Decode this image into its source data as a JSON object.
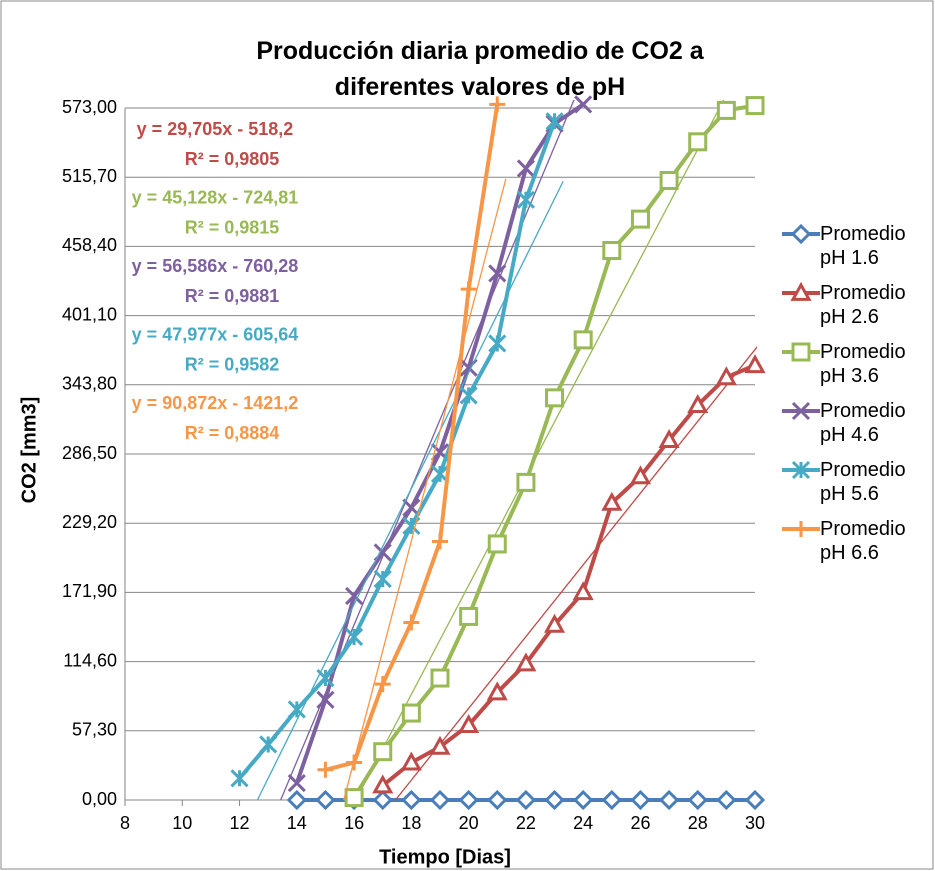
{
  "chart_data": {
    "type": "line",
    "title": "Producción diaria promedio de CO2 a diferentes valores de pH",
    "x_label": "Tiempo [Dias]",
    "y_label": "CO2 [mm3]",
    "xlim": [
      8,
      30
    ],
    "xticks": [
      8,
      10,
      12,
      14,
      16,
      18,
      20,
      22,
      24,
      26,
      28,
      30
    ],
    "ylim": [
      0,
      573
    ],
    "yticks": [
      {
        "value": 0,
        "label": "0,00"
      },
      {
        "value": 57.3,
        "label": "57,30"
      },
      {
        "value": 114.6,
        "label": "114,60"
      },
      {
        "value": 171.9,
        "label": "171,90"
      },
      {
        "value": 229.2,
        "label": "229,20"
      },
      {
        "value": 286.5,
        "label": "286,50"
      },
      {
        "value": 343.8,
        "label": "343,80"
      },
      {
        "value": 401.1,
        "label": "401,10"
      },
      {
        "value": 458.4,
        "label": "458,40"
      },
      {
        "value": 515.7,
        "label": "515,70"
      },
      {
        "value": 573,
        "label": "573,00"
      }
    ],
    "grid": true,
    "legend": "right",
    "series": [
      {
        "name": "Promedio pH 1.6",
        "color": "#4a7ebb",
        "marker": "diamond",
        "x": [
          14,
          15,
          16,
          17,
          18,
          19,
          20,
          21,
          22,
          23,
          24,
          25,
          26,
          27,
          28,
          29,
          30
        ],
        "values": [
          0,
          0,
          0,
          0,
          0,
          0,
          0,
          0,
          0,
          0,
          0,
          0,
          0,
          0,
          0,
          0,
          0
        ]
      },
      {
        "name": "Promedio pH 2.6",
        "color": "#be4b48",
        "marker": "triangle",
        "x": [
          17,
          18,
          19,
          20,
          21,
          22,
          23,
          24,
          25,
          26,
          27,
          28,
          29,
          30
        ],
        "values": [
          12,
          31,
          44,
          62,
          89,
          113,
          145,
          172,
          246,
          268,
          298,
          327,
          350,
          360
        ],
        "trendline": {
          "slope": 29.705,
          "intercept": -518.2,
          "equation": "y = 29,705x - 518,2",
          "r2": "R² = 0,9805"
        }
      },
      {
        "name": "Promedio pH 3.6",
        "color": "#98b954",
        "marker": "square",
        "x": [
          16,
          17,
          18,
          19,
          20,
          21,
          22,
          23,
          24,
          25,
          26,
          27,
          28,
          29,
          30
        ],
        "values": [
          2,
          40,
          72,
          101,
          152,
          212,
          263,
          333,
          381,
          455,
          481,
          513,
          545,
          571,
          575
        ],
        "trendline": {
          "slope": 45.128,
          "intercept": -724.81,
          "equation": "y = 45,128x - 724,81",
          "r2": "R² = 0,9815"
        }
      },
      {
        "name": "Promedio pH 4.6",
        "color": "#7d60a0",
        "marker": "x",
        "x": [
          14,
          15,
          16,
          17,
          18,
          19,
          20,
          21,
          22,
          23,
          24
        ],
        "values": [
          14,
          83,
          169,
          205,
          242,
          288,
          358,
          436,
          523,
          560,
          576
        ],
        "trendline": {
          "slope": 56.586,
          "intercept": -760.28,
          "equation": "y = 56,586x - 760,28",
          "r2": "R² = 0,9881"
        }
      },
      {
        "name": "Promedio pH 5.6",
        "color": "#46aac5",
        "marker": "star",
        "x": [
          12,
          13,
          14,
          15,
          16,
          17,
          18,
          19,
          20,
          21,
          22,
          23
        ],
        "values": [
          18,
          46,
          75,
          101,
          135,
          183,
          227,
          270,
          335,
          378,
          497,
          562
        ],
        "trendline": {
          "slope": 47.977,
          "intercept": -605.64,
          "equation": "y = 47,977x - 605,64",
          "r2": "R² = 0,9582"
        }
      },
      {
        "name": "Promedio pH 6.6",
        "color": "#f79646",
        "marker": "plus",
        "x": [
          15,
          16,
          17,
          18,
          19,
          20,
          21
        ],
        "values": [
          25,
          31,
          96,
          147,
          214,
          423,
          576
        ],
        "trendline": {
          "slope": 90.872,
          "intercept": -1421.2,
          "equation": "y = 90,872x - 1421,2",
          "r2": "R² = 0,8884"
        }
      }
    ]
  }
}
